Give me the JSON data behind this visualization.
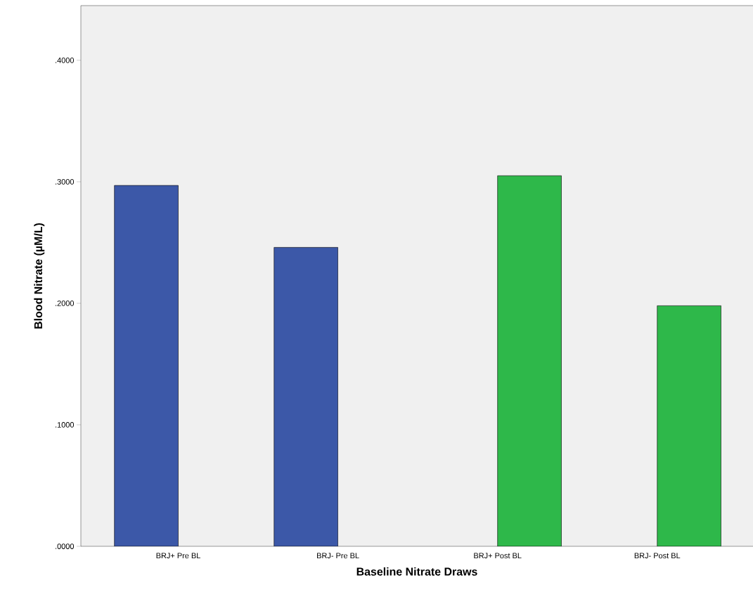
{
  "chart_data": {
    "type": "bar",
    "xlabel": "Baseline Nitrate Draws",
    "ylabel": "Blood Nitrate (µM/L)",
    "categories": [
      "BRJ+ Pre BL",
      "BRJ- Pre BL",
      "BRJ+ Post BL",
      "BRJ- Post BL"
    ],
    "series": [
      {
        "color": "#3c58a8",
        "values": [
          0.297,
          0.246,
          null,
          null
        ]
      },
      {
        "color": "#2eb84a",
        "values": [
          null,
          null,
          0.305,
          0.198
        ]
      }
    ],
    "ylim": [
      0,
      0.445
    ],
    "yticks": [
      {
        "value": 0,
        "label": ".0000"
      },
      {
        "value": 0.1,
        "label": ".1000"
      },
      {
        "value": 0.2,
        "label": ".2000"
      },
      {
        "value": 0.3,
        "label": ".3000"
      },
      {
        "value": 0.4,
        "label": ".4000"
      }
    ]
  }
}
